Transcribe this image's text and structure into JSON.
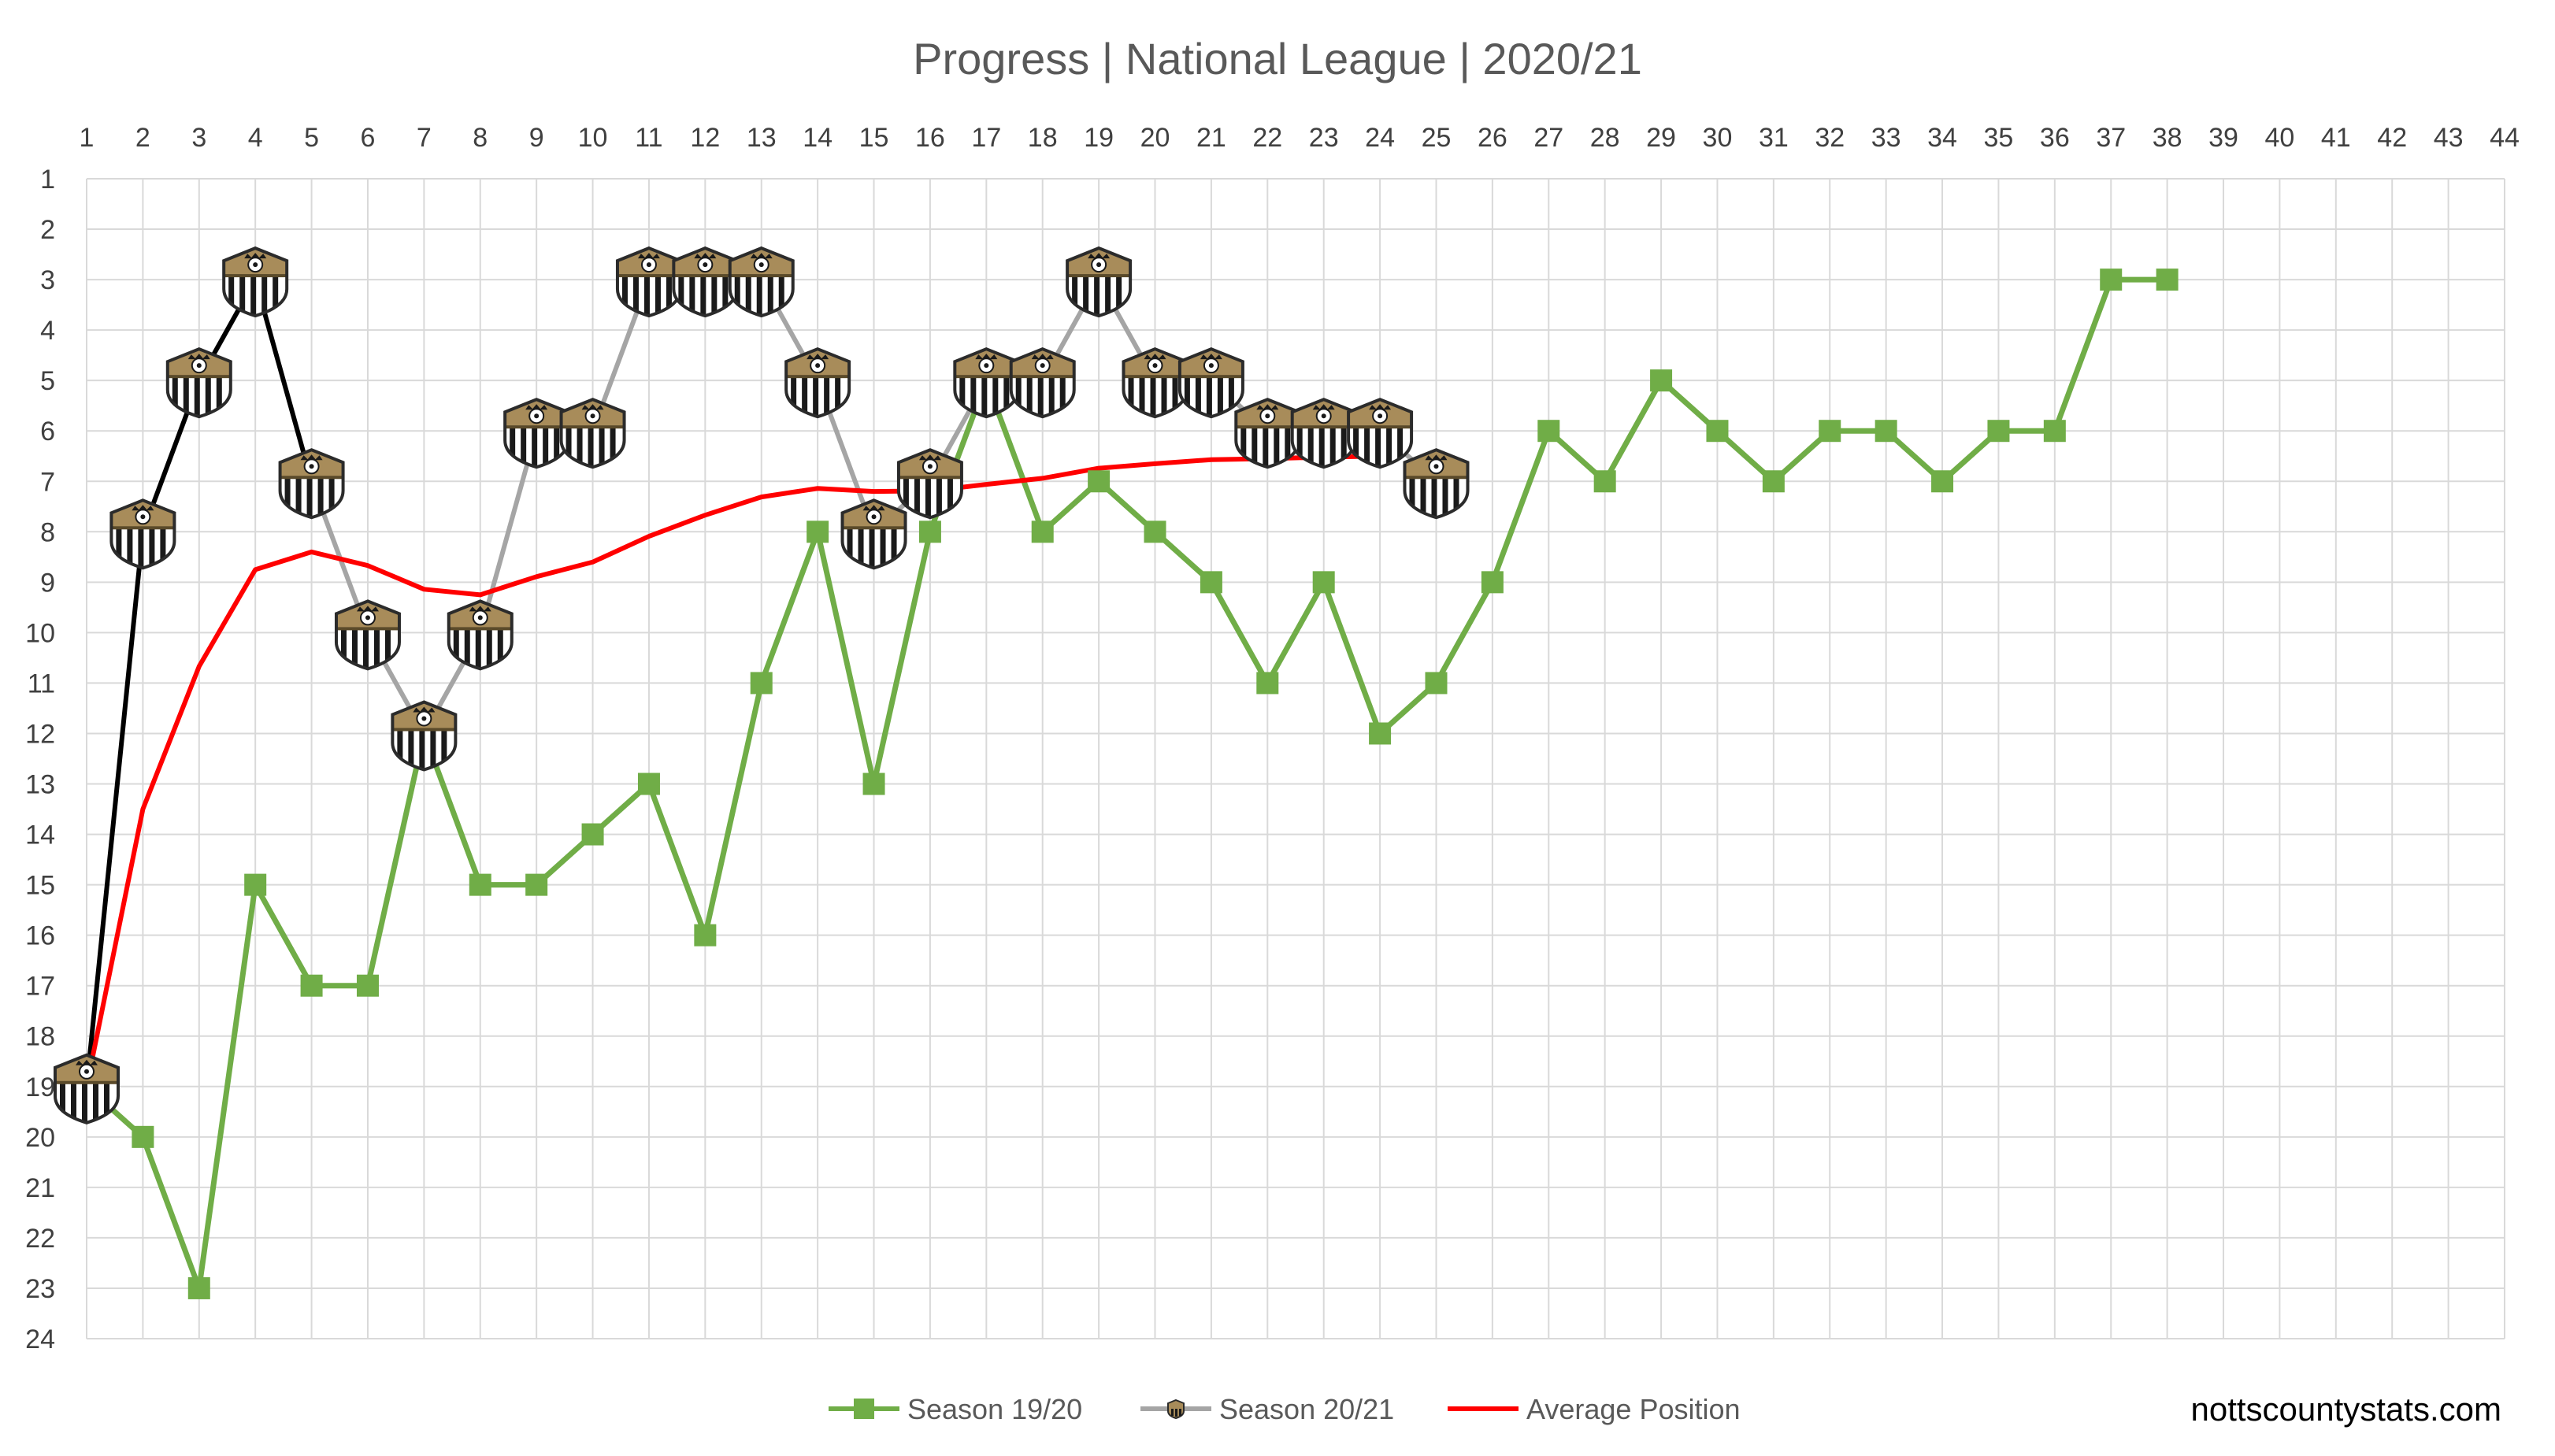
{
  "chart_data": {
    "type": "line",
    "title": "Progress | National League | 2020/21",
    "credit": "nottscountystats.com",
    "x_ticks": [
      1,
      2,
      3,
      4,
      5,
      6,
      7,
      8,
      9,
      10,
      11,
      12,
      13,
      14,
      15,
      16,
      17,
      18,
      19,
      20,
      21,
      22,
      23,
      24,
      25,
      26,
      27,
      28,
      29,
      30,
      31,
      32,
      33,
      34,
      35,
      36,
      37,
      38,
      39,
      40,
      41,
      42,
      43,
      44
    ],
    "y_ticks": [
      1,
      2,
      3,
      4,
      5,
      6,
      7,
      8,
      9,
      10,
      11,
      12,
      13,
      14,
      15,
      16,
      17,
      18,
      19,
      20,
      21,
      22,
      23,
      24
    ],
    "xlim": [
      1,
      44
    ],
    "ylim": [
      1,
      24
    ],
    "y_inverted": true,
    "grid": true,
    "legend_position": "bottom",
    "series": [
      {
        "name": "Season 19/20",
        "color": "#70ad47",
        "marker": "square",
        "x": [
          1,
          2,
          3,
          4,
          5,
          6,
          7,
          8,
          9,
          10,
          11,
          12,
          13,
          14,
          15,
          16,
          17,
          18,
          19,
          20,
          21,
          22,
          23,
          24,
          25,
          26,
          27,
          28,
          29,
          30,
          31,
          32,
          33,
          34,
          35,
          36,
          37,
          38
        ],
        "values": [
          19,
          20,
          23,
          15,
          17,
          17,
          12,
          15,
          15,
          14,
          13,
          16,
          11,
          8,
          13,
          8,
          5,
          8,
          7,
          8,
          9,
          11,
          9,
          12,
          11,
          9,
          6,
          7,
          5,
          6,
          7,
          6,
          6,
          7,
          6,
          6,
          3,
          3
        ]
      },
      {
        "name": "Season 20/21",
        "color": "#a5a5a5",
        "marker": "club-crest-icon",
        "x": [
          1,
          2,
          3,
          4,
          5,
          6,
          7,
          8,
          9,
          10,
          11,
          12,
          13,
          14,
          15,
          16,
          17,
          18,
          19,
          20,
          21,
          22,
          23,
          24,
          25
        ],
        "values": [
          19,
          8,
          5,
          3,
          7,
          10,
          12,
          10,
          6,
          6,
          3,
          3,
          3,
          5,
          8,
          7,
          5,
          5,
          3,
          5,
          5,
          6,
          6,
          6,
          7
        ],
        "line_segments": [
          {
            "from": 1,
            "to": 5,
            "color": "#000000"
          },
          {
            "from": 5,
            "to": 25,
            "color": "#a5a5a5"
          }
        ]
      },
      {
        "name": "Average Position",
        "color": "#ff0000",
        "marker": "none",
        "x": [
          1,
          2,
          3,
          4,
          5,
          6,
          7,
          8,
          9,
          10,
          11,
          12,
          13,
          14,
          15,
          16,
          17,
          18,
          19,
          20,
          21,
          22,
          23,
          24
        ],
        "values": [
          19,
          13.5,
          10.67,
          8.75,
          8.4,
          8.67,
          9.14,
          9.25,
          8.89,
          8.6,
          8.09,
          7.67,
          7.31,
          7.14,
          7.2,
          7.19,
          7.06,
          6.94,
          6.74,
          6.65,
          6.57,
          6.55,
          6.52,
          6.5
        ]
      }
    ]
  }
}
